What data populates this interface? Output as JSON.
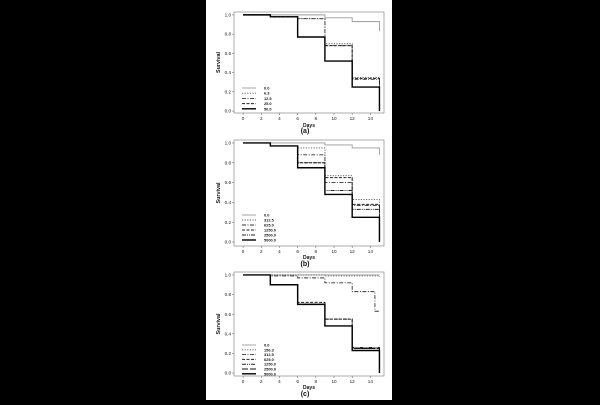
{
  "figure": {
    "background": "#000000",
    "panel_background": "#ffffff"
  },
  "chart_data": [
    {
      "type": "line",
      "step": true,
      "panel_label": "(a)",
      "xlabel": "Days",
      "ylabel": "Survival",
      "xlim": [
        -1,
        15.5
      ],
      "ylim": [
        -0.02,
        1.03
      ],
      "xticks": [
        0,
        2,
        4,
        6,
        8,
        10,
        12,
        14
      ],
      "yticks": [
        0.0,
        0.2,
        0.4,
        0.6,
        0.8,
        1.0
      ],
      "ytick_labels": [
        "0.0",
        "0.2",
        "0.4",
        "0.6",
        "0.8",
        "1.0"
      ],
      "legend_position": "bottom-left",
      "series": [
        {
          "name": "0.0",
          "style": "solid-light",
          "x": [
            0,
            3,
            9,
            12,
            15
          ],
          "y": [
            1.0,
            1.0,
            0.97,
            0.93,
            0.83
          ]
        },
        {
          "name": "6.3",
          "style": "dotted",
          "x": [
            0,
            3,
            6,
            9,
            12,
            15
          ],
          "y": [
            1.0,
            0.98,
            0.96,
            0.7,
            0.35,
            0.05
          ]
        },
        {
          "name": "12.5",
          "style": "dash-dot",
          "x": [
            0,
            3,
            6,
            9,
            12,
            15
          ],
          "y": [
            1.0,
            0.98,
            0.96,
            0.68,
            0.33,
            0.05
          ]
        },
        {
          "name": "25.0",
          "style": "dashed",
          "x": [
            0,
            3,
            6,
            9,
            12,
            15
          ],
          "y": [
            1.0,
            0.98,
            0.77,
            0.68,
            0.34,
            0.02
          ]
        },
        {
          "name": "50.0",
          "style": "solid-dark",
          "x": [
            0,
            3,
            6,
            9,
            12,
            15
          ],
          "y": [
            1.0,
            0.98,
            0.77,
            0.52,
            0.25,
            0.0
          ]
        }
      ]
    },
    {
      "type": "line",
      "step": true,
      "panel_label": "(b)",
      "xlabel": "Days",
      "ylabel": "Survival",
      "xlim": [
        -1,
        15.5
      ],
      "ylim": [
        -0.04,
        1.03
      ],
      "xticks": [
        0,
        2,
        4,
        6,
        8,
        10,
        12,
        14
      ],
      "yticks": [
        0.0,
        0.2,
        0.4,
        0.6,
        0.8,
        1.0
      ],
      "ytick_labels": [
        "0.0",
        "0.2",
        "0.4",
        "0.6",
        "0.8",
        "1.0"
      ],
      "legend_position": "bottom-left",
      "series": [
        {
          "name": "0.0",
          "style": "solid-light",
          "x": [
            0,
            3,
            9,
            12,
            15
          ],
          "y": [
            1.0,
            1.0,
            0.98,
            0.95,
            0.88
          ]
        },
        {
          "name": "312.5",
          "style": "dotted",
          "x": [
            0,
            3,
            6,
            9,
            12,
            15
          ],
          "y": [
            1.0,
            0.97,
            0.95,
            0.67,
            0.43,
            0.05
          ]
        },
        {
          "name": "625.0",
          "style": "dash-dot",
          "x": [
            0,
            3,
            6,
            9,
            12,
            15
          ],
          "y": [
            1.0,
            0.97,
            0.88,
            0.6,
            0.37,
            0.03
          ]
        },
        {
          "name": "1250.0",
          "style": "dashed",
          "x": [
            0,
            3,
            6,
            9,
            12,
            15
          ],
          "y": [
            1.0,
            0.97,
            0.8,
            0.65,
            0.38,
            0.02
          ]
        },
        {
          "name": "2500.0",
          "style": "dash-dot-dot",
          "x": [
            0,
            3,
            6,
            9,
            12,
            15
          ],
          "y": [
            1.0,
            0.97,
            0.8,
            0.52,
            0.33,
            0.02
          ]
        },
        {
          "name": "5000.0",
          "style": "solid-dark",
          "x": [
            0,
            3,
            6,
            9,
            12,
            15
          ],
          "y": [
            1.0,
            0.97,
            0.75,
            0.48,
            0.25,
            0.0
          ]
        }
      ]
    },
    {
      "type": "line",
      "step": true,
      "panel_label": "(c)",
      "xlabel": "Days",
      "ylabel": "Survival",
      "xlim": [
        -1,
        15.5
      ],
      "ylim": [
        -0.03,
        1.03
      ],
      "xticks": [
        0,
        2,
        4,
        6,
        8,
        10,
        12,
        14
      ],
      "yticks": [
        0.0,
        0.2,
        0.4,
        0.6,
        0.8,
        1.0
      ],
      "ytick_labels": [
        "0.0",
        "0.2",
        "0.4",
        "0.6",
        "0.8",
        "1.0"
      ],
      "legend_position": "bottom-left",
      "series": [
        {
          "name": "0.0",
          "style": "solid-light",
          "x": [
            0,
            3,
            15
          ],
          "y": [
            1.0,
            1.0,
            1.0
          ]
        },
        {
          "name": "156.3",
          "style": "dotted",
          "x": [
            0,
            3,
            9,
            15
          ],
          "y": [
            1.0,
            1.0,
            0.99,
            0.98
          ]
        },
        {
          "name": "312.5",
          "style": "dash-dot",
          "x": [
            0,
            3,
            6,
            9,
            12,
            14.5,
            15
          ],
          "y": [
            1.0,
            0.99,
            0.97,
            0.92,
            0.83,
            0.63,
            0.63
          ]
        },
        {
          "name": "625.0",
          "style": "dashed",
          "x": [
            0,
            3,
            6,
            9,
            12,
            15
          ],
          "y": [
            1.0,
            0.9,
            0.72,
            0.55,
            0.25,
            0.02
          ]
        },
        {
          "name": "1250.0",
          "style": "dash-dot-dot",
          "x": [
            0,
            3,
            6,
            9,
            12,
            15
          ],
          "y": [
            1.0,
            0.9,
            0.7,
            0.55,
            0.26,
            0.02
          ]
        },
        {
          "name": "2500.0",
          "style": "long-dash",
          "x": [
            0,
            3,
            6,
            9,
            12,
            15
          ],
          "y": [
            1.0,
            0.9,
            0.7,
            0.48,
            0.25,
            0.0
          ]
        },
        {
          "name": "5000.0",
          "style": "solid-dark",
          "x": [
            0,
            3,
            6,
            9,
            12,
            15
          ],
          "y": [
            1.0,
            0.9,
            0.7,
            0.48,
            0.23,
            0.0
          ]
        }
      ]
    }
  ]
}
